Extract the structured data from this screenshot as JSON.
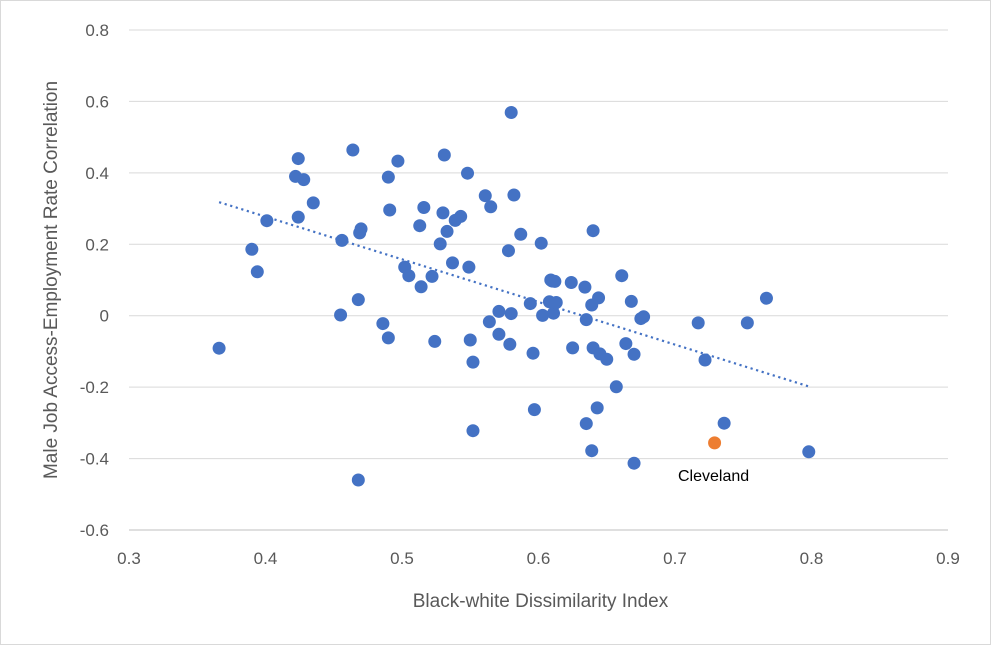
{
  "chart_data": {
    "type": "scatter",
    "title": "",
    "xlabel": "Black-white Dissimilarity Index",
    "ylabel": "Male Job Access-Employment Rate Correlation",
    "xlim": [
      0.3,
      0.9
    ],
    "ylim": [
      -0.6,
      0.8
    ],
    "x_ticks": [
      "0.3",
      "0.4",
      "0.5",
      "0.6",
      "0.7",
      "0.8",
      "0.9"
    ],
    "y_ticks": [
      "-0.6",
      "-0.4",
      "-0.2",
      "0",
      "0.2",
      "0.4",
      "0.6",
      "0.8"
    ],
    "grid": "horizontal",
    "legend": "none",
    "point_color": "#4472C4",
    "highlight_color": "#ED7D31",
    "trendline": {
      "style": "dotted-linear",
      "color": "#4472C4",
      "from": [
        0.366,
        0.318
      ],
      "to": [
        0.798,
        -0.198
      ]
    },
    "points": [
      [
        0.366,
        -0.091
      ],
      [
        0.39,
        0.186
      ],
      [
        0.394,
        0.123
      ],
      [
        0.401,
        0.266
      ],
      [
        0.422,
        0.39
      ],
      [
        0.424,
        0.44
      ],
      [
        0.424,
        0.276
      ],
      [
        0.428,
        0.381
      ],
      [
        0.435,
        0.316
      ],
      [
        0.455,
        0.002
      ],
      [
        0.456,
        0.211
      ],
      [
        0.464,
        0.464
      ],
      [
        0.468,
        -0.46
      ],
      [
        0.468,
        0.045
      ],
      [
        0.469,
        0.232
      ],
      [
        0.47,
        0.243
      ],
      [
        0.486,
        -0.022
      ],
      [
        0.49,
        0.388
      ],
      [
        0.49,
        -0.062
      ],
      [
        0.491,
        0.296
      ],
      [
        0.497,
        0.433
      ],
      [
        0.502,
        0.136
      ],
      [
        0.505,
        0.112
      ],
      [
        0.513,
        0.252
      ],
      [
        0.514,
        0.081
      ],
      [
        0.516,
        0.303
      ],
      [
        0.522,
        0.11
      ],
      [
        0.524,
        -0.072
      ],
      [
        0.528,
        0.201
      ],
      [
        0.53,
        0.288
      ],
      [
        0.531,
        0.45
      ],
      [
        0.533,
        0.236
      ],
      [
        0.537,
        0.148
      ],
      [
        0.539,
        0.267
      ],
      [
        0.543,
        0.278
      ],
      [
        0.548,
        0.399
      ],
      [
        0.549,
        0.136
      ],
      [
        0.55,
        -0.068
      ],
      [
        0.552,
        -0.13
      ],
      [
        0.552,
        -0.322
      ],
      [
        0.561,
        0.336
      ],
      [
        0.564,
        -0.017
      ],
      [
        0.565,
        0.305
      ],
      [
        0.571,
        0.012
      ],
      [
        0.571,
        -0.052
      ],
      [
        0.578,
        0.182
      ],
      [
        0.579,
        -0.08
      ],
      [
        0.58,
        0.006
      ],
      [
        0.58,
        0.569
      ],
      [
        0.582,
        0.338
      ],
      [
        0.587,
        0.228
      ],
      [
        0.594,
        0.034
      ],
      [
        0.596,
        -0.105
      ],
      [
        0.597,
        -0.263
      ],
      [
        0.602,
        0.203
      ],
      [
        0.603,
        0.001
      ],
      [
        0.608,
        0.039
      ],
      [
        0.609,
        0.1
      ],
      [
        0.61,
        0.097
      ],
      [
        0.611,
        0.007
      ],
      [
        0.612,
        0.096
      ],
      [
        0.613,
        0.037
      ],
      [
        0.624,
        0.093
      ],
      [
        0.625,
        -0.09
      ],
      [
        0.634,
        0.08
      ],
      [
        0.635,
        -0.011
      ],
      [
        0.635,
        -0.302
      ],
      [
        0.639,
        0.03
      ],
      [
        0.639,
        -0.378
      ],
      [
        0.64,
        0.238
      ],
      [
        0.64,
        -0.09
      ],
      [
        0.643,
        -0.258
      ],
      [
        0.644,
        0.05
      ],
      [
        0.645,
        -0.107
      ],
      [
        0.65,
        -0.122
      ],
      [
        0.657,
        -0.199
      ],
      [
        0.661,
        0.112
      ],
      [
        0.664,
        -0.078
      ],
      [
        0.668,
        0.04
      ],
      [
        0.67,
        -0.108
      ],
      [
        0.67,
        -0.413
      ],
      [
        0.675,
        -0.008
      ],
      [
        0.677,
        -0.003
      ],
      [
        0.717,
        -0.02
      ],
      [
        0.722,
        -0.124
      ],
      [
        0.736,
        -0.301
      ],
      [
        0.753,
        -0.02
      ],
      [
        0.767,
        0.049
      ],
      [
        0.798,
        -0.381
      ]
    ],
    "highlight": {
      "label": "Cleveland",
      "x": 0.729,
      "y": -0.356
    }
  }
}
